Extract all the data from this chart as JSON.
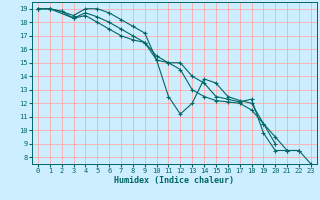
{
  "xlabel": "Humidex (Indice chaleur)",
  "bg_color": "#cceeff",
  "grid_color": "#ffaaaa",
  "line_color": "#006666",
  "xlim": [
    -0.5,
    23.5
  ],
  "ylim": [
    7.5,
    19.5
  ],
  "yticks": [
    8,
    9,
    10,
    11,
    12,
    13,
    14,
    15,
    16,
    17,
    18,
    19
  ],
  "xticks": [
    0,
    1,
    2,
    3,
    4,
    5,
    6,
    7,
    8,
    9,
    10,
    11,
    12,
    13,
    14,
    15,
    16,
    17,
    18,
    19,
    20,
    21,
    22,
    23
  ],
  "series": [
    {
      "x": [
        0,
        1,
        2,
        3,
        4,
        5,
        6,
        7,
        8,
        9,
        10,
        11,
        12,
        13,
        14,
        15,
        16,
        17,
        18,
        19,
        20,
        21,
        22,
        23
      ],
      "y": [
        19,
        19,
        18.8,
        18.5,
        19,
        19,
        18.7,
        18.2,
        17.7,
        17.2,
        15.2,
        15.0,
        15.0,
        14.0,
        13.5,
        12.5,
        12.3,
        12.1,
        12.3,
        9.8,
        8.5,
        8.5,
        8.5,
        7.5
      ]
    },
    {
      "x": [
        0,
        1,
        2,
        3,
        4,
        5,
        6,
        7,
        8,
        9,
        10,
        11,
        12,
        13,
        14,
        15,
        16,
        17,
        18,
        19,
        20,
        21,
        22
      ],
      "y": [
        19,
        19,
        18.8,
        18.3,
        18.7,
        18.4,
        18.0,
        17.5,
        17.0,
        16.5,
        15.5,
        15.0,
        14.5,
        13.0,
        12.5,
        12.2,
        12.1,
        12.0,
        11.5,
        10.5,
        9.5,
        8.5,
        8.5
      ]
    },
    {
      "x": [
        0,
        1,
        3,
        4,
        5,
        6,
        7,
        8,
        9,
        10,
        11,
        12,
        13,
        14,
        15,
        16,
        17,
        18,
        19,
        20
      ],
      "y": [
        19,
        19,
        18.3,
        18.5,
        18.0,
        17.5,
        17.0,
        16.7,
        16.5,
        15.2,
        12.5,
        11.2,
        12.0,
        13.8,
        13.5,
        12.5,
        12.2,
        12.0,
        10.5,
        9.0
      ]
    }
  ]
}
